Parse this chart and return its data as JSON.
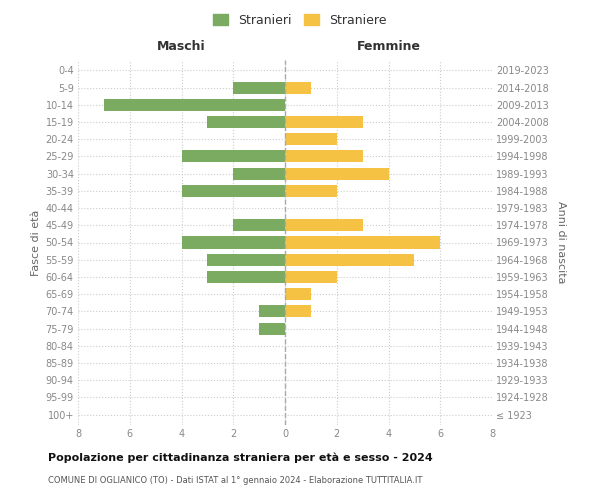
{
  "age_groups": [
    "100+",
    "95-99",
    "90-94",
    "85-89",
    "80-84",
    "75-79",
    "70-74",
    "65-69",
    "60-64",
    "55-59",
    "50-54",
    "45-49",
    "40-44",
    "35-39",
    "30-34",
    "25-29",
    "20-24",
    "15-19",
    "10-14",
    "5-9",
    "0-4"
  ],
  "birth_years": [
    "≤ 1923",
    "1924-1928",
    "1929-1933",
    "1934-1938",
    "1939-1943",
    "1944-1948",
    "1949-1953",
    "1954-1958",
    "1959-1963",
    "1964-1968",
    "1969-1973",
    "1974-1978",
    "1979-1983",
    "1984-1988",
    "1989-1993",
    "1994-1998",
    "1999-2003",
    "2004-2008",
    "2009-2013",
    "2014-2018",
    "2019-2023"
  ],
  "males": [
    0,
    0,
    0,
    0,
    0,
    1,
    1,
    0,
    3,
    3,
    4,
    2,
    0,
    4,
    2,
    4,
    0,
    3,
    7,
    2,
    0
  ],
  "females": [
    0,
    0,
    0,
    0,
    0,
    0,
    1,
    1,
    2,
    5,
    6,
    3,
    0,
    2,
    4,
    3,
    2,
    3,
    0,
    1,
    0
  ],
  "male_color": "#7aab60",
  "female_color": "#f5c243",
  "male_label": "Stranieri",
  "female_label": "Straniere",
  "title": "Popolazione per cittadinanza straniera per età e sesso - 2024",
  "subtitle": "COMUNE DI OGLIANICO (TO) - Dati ISTAT al 1° gennaio 2024 - Elaborazione TUTTITALIA.IT",
  "ylabel_left": "Fasce di età",
  "ylabel_right": "Anni di nascita",
  "xlabel_left": "Maschi",
  "xlabel_right": "Femmine",
  "xlim": 8,
  "background_color": "#ffffff",
  "grid_color": "#cccccc",
  "axis_label_color": "#666666",
  "tick_color": "#888888"
}
